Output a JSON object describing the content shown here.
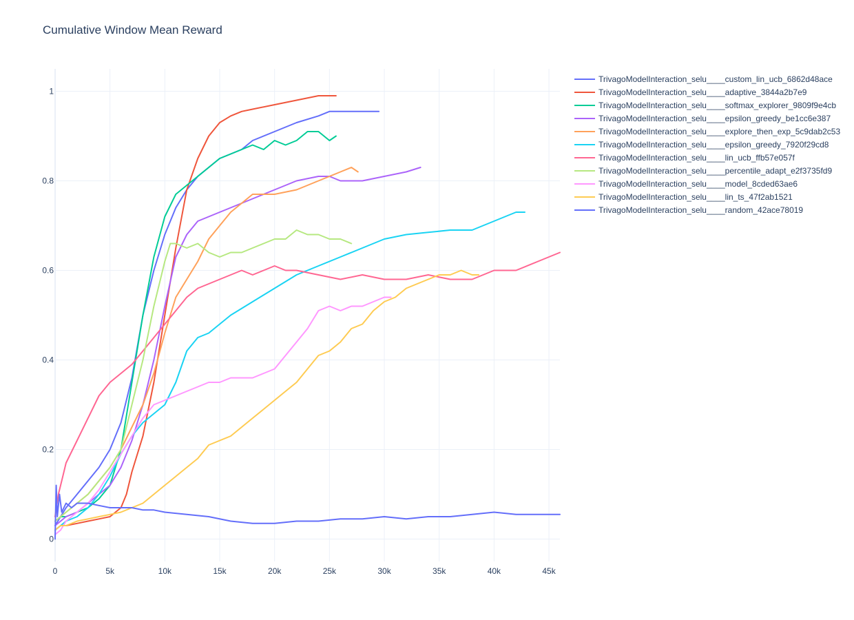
{
  "chart_data": {
    "type": "line",
    "title": "Cumulative Window Mean Reward",
    "xlabel": "",
    "ylabel": "",
    "xlim": [
      0,
      46000
    ],
    "ylim": [
      -0.05,
      1.05
    ],
    "x_ticks": [
      0,
      5000,
      10000,
      15000,
      20000,
      25000,
      30000,
      35000,
      40000,
      45000
    ],
    "x_tick_labels": [
      "0",
      "5k",
      "10k",
      "15k",
      "20k",
      "25k",
      "30k",
      "35k",
      "40k",
      "45k"
    ],
    "y_ticks": [
      0,
      0.2,
      0.4,
      0.6,
      0.8,
      1
    ],
    "y_tick_labels": [
      "0",
      "0.2",
      "0.4",
      "0.6",
      "0.8",
      "1"
    ],
    "grid": true,
    "legend_position": "top-right",
    "series": [
      {
        "name": "TrivagoModelInteraction_selu____custom_lin_ucb_6862d48ace",
        "color": "#636efa",
        "x": [
          0,
          500,
          1000,
          2000,
          3000,
          4000,
          5000,
          6000,
          7000,
          8000,
          9000,
          10000,
          11000,
          12000,
          13000,
          14000,
          15000,
          16000,
          17000,
          18000,
          20000,
          22000,
          24000,
          25000,
          26000,
          28000,
          29500
        ],
        "y": [
          0.03,
          0.05,
          0.07,
          0.1,
          0.13,
          0.16,
          0.2,
          0.26,
          0.36,
          0.5,
          0.6,
          0.68,
          0.74,
          0.78,
          0.81,
          0.83,
          0.85,
          0.86,
          0.87,
          0.89,
          0.91,
          0.93,
          0.945,
          0.955,
          0.955,
          0.955,
          0.955
        ]
      },
      {
        "name": "TrivagoModelInteraction_selu____adaptive_3844a2b7e9",
        "color": "#ef553b",
        "x": [
          0,
          500,
          1000,
          2000,
          3000,
          4000,
          5000,
          6000,
          6500,
          7000,
          7500,
          8000,
          9000,
          10000,
          11000,
          12000,
          13000,
          14000,
          15000,
          16000,
          17000,
          18000,
          20000,
          22000,
          24000,
          25600
        ],
        "y": [
          0.02,
          0.03,
          0.03,
          0.035,
          0.04,
          0.045,
          0.05,
          0.07,
          0.1,
          0.15,
          0.19,
          0.23,
          0.35,
          0.5,
          0.65,
          0.78,
          0.85,
          0.9,
          0.93,
          0.945,
          0.955,
          0.96,
          0.97,
          0.98,
          0.99,
          0.99
        ]
      },
      {
        "name": "TrivagoModelInteraction_selu____softmax_explorer_9809f9e4cb",
        "color": "#00cc96",
        "x": [
          0,
          500,
          1000,
          2000,
          3000,
          4000,
          5000,
          6000,
          7000,
          8000,
          9000,
          10000,
          11000,
          12000,
          13000,
          14000,
          15000,
          16000,
          17000,
          18000,
          19000,
          20000,
          21000,
          22000,
          23000,
          24000,
          25000,
          25600
        ],
        "y": [
          0.04,
          0.05,
          0.05,
          0.06,
          0.07,
          0.09,
          0.12,
          0.2,
          0.35,
          0.5,
          0.63,
          0.72,
          0.77,
          0.79,
          0.81,
          0.83,
          0.85,
          0.86,
          0.87,
          0.88,
          0.87,
          0.89,
          0.88,
          0.89,
          0.91,
          0.91,
          0.89,
          0.9
        ]
      },
      {
        "name": "TrivagoModelInteraction_selu____epsilon_greedy_be1cc6e387",
        "color": "#ab63fa",
        "x": [
          0,
          500,
          1000,
          2000,
          3000,
          4000,
          5000,
          6000,
          7000,
          8000,
          9000,
          10000,
          11000,
          12000,
          13000,
          14000,
          15000,
          16000,
          18000,
          20000,
          22000,
          24000,
          25000,
          26000,
          28000,
          30000,
          32000,
          33300
        ],
        "y": [
          0.03,
          0.04,
          0.05,
          0.06,
          0.08,
          0.1,
          0.12,
          0.16,
          0.22,
          0.3,
          0.4,
          0.52,
          0.63,
          0.68,
          0.71,
          0.72,
          0.73,
          0.74,
          0.76,
          0.78,
          0.8,
          0.81,
          0.81,
          0.8,
          0.8,
          0.81,
          0.82,
          0.83
        ]
      },
      {
        "name": "TrivagoModelInteraction_selu____explore_then_exp_5c9dab2c53",
        "color": "#ffa15a",
        "x": [
          0,
          500,
          1000,
          2000,
          3000,
          4000,
          5000,
          6000,
          7000,
          8000,
          9000,
          10000,
          11000,
          12000,
          13000,
          14000,
          15000,
          16000,
          17000,
          18000,
          20000,
          22000,
          24000,
          25000,
          26000,
          27000,
          27600
        ],
        "y": [
          0.04,
          0.05,
          0.06,
          0.08,
          0.1,
          0.13,
          0.16,
          0.2,
          0.25,
          0.3,
          0.37,
          0.46,
          0.54,
          0.58,
          0.62,
          0.67,
          0.7,
          0.73,
          0.75,
          0.77,
          0.77,
          0.78,
          0.8,
          0.81,
          0.82,
          0.83,
          0.82
        ]
      },
      {
        "name": "TrivagoModelInteraction_selu____epsilon_greedy_7920f29cd8",
        "color": "#19d3f3",
        "x": [
          0,
          500,
          1000,
          2000,
          3000,
          4000,
          5000,
          6000,
          7000,
          8000,
          9000,
          10000,
          11000,
          12000,
          13000,
          14000,
          15000,
          16000,
          18000,
          20000,
          22000,
          24000,
          26000,
          28000,
          30000,
          32000,
          34000,
          36000,
          38000,
          40000,
          41000,
          42000,
          42800
        ],
        "y": [
          0.02,
          0.03,
          0.04,
          0.05,
          0.07,
          0.1,
          0.14,
          0.19,
          0.23,
          0.26,
          0.28,
          0.3,
          0.35,
          0.42,
          0.45,
          0.46,
          0.48,
          0.5,
          0.53,
          0.56,
          0.59,
          0.61,
          0.63,
          0.65,
          0.67,
          0.68,
          0.685,
          0.69,
          0.69,
          0.71,
          0.72,
          0.73,
          0.73
        ]
      },
      {
        "name": "TrivagoModelInteraction_selu____lin_ucb_ffb57e057f",
        "color": "#ff6692",
        "x": [
          0,
          300,
          700,
          1000,
          2000,
          3000,
          4000,
          5000,
          6000,
          7000,
          8000,
          9000,
          10000,
          11000,
          12000,
          13000,
          14000,
          15000,
          16000,
          17000,
          18000,
          19000,
          20000,
          21000,
          22000,
          24000,
          26000,
          28000,
          30000,
          32000,
          34000,
          36000,
          37000,
          38000,
          40000,
          42000,
          44000,
          46000
        ],
        "y": [
          0.05,
          0.1,
          0.14,
          0.17,
          0.22,
          0.27,
          0.32,
          0.35,
          0.37,
          0.39,
          0.42,
          0.45,
          0.48,
          0.51,
          0.54,
          0.56,
          0.57,
          0.58,
          0.59,
          0.6,
          0.59,
          0.6,
          0.61,
          0.6,
          0.6,
          0.59,
          0.58,
          0.59,
          0.58,
          0.58,
          0.59,
          0.58,
          0.58,
          0.58,
          0.6,
          0.6,
          0.62,
          0.64
        ]
      },
      {
        "name": "TrivagoModelInteraction_selu____percentile_adapt_e2f3735fd9",
        "color": "#b6e880",
        "x": [
          0,
          500,
          1000,
          2000,
          3000,
          4000,
          5000,
          6000,
          7000,
          8000,
          9000,
          10000,
          10500,
          11000,
          12000,
          13000,
          14000,
          15000,
          16000,
          17000,
          18000,
          19000,
          20000,
          21000,
          22000,
          23000,
          24000,
          25000,
          26000,
          27000
        ],
        "y": [
          0.04,
          0.05,
          0.06,
          0.08,
          0.1,
          0.13,
          0.16,
          0.2,
          0.3,
          0.4,
          0.52,
          0.62,
          0.66,
          0.66,
          0.65,
          0.66,
          0.64,
          0.63,
          0.64,
          0.64,
          0.65,
          0.66,
          0.67,
          0.67,
          0.69,
          0.68,
          0.68,
          0.67,
          0.67,
          0.66
        ]
      },
      {
        "name": "TrivagoModelInteraction_selu____model_8cded63ae6",
        "color": "#ff97ff",
        "x": [
          0,
          500,
          1000,
          2000,
          3000,
          4000,
          5000,
          6000,
          7000,
          8000,
          9000,
          10000,
          11000,
          12000,
          13000,
          14000,
          15000,
          16000,
          17000,
          18000,
          19000,
          20000,
          21000,
          22000,
          23000,
          24000,
          25000,
          26000,
          27000,
          28000,
          29000,
          30000,
          30600
        ],
        "y": [
          0.01,
          0.02,
          0.04,
          0.06,
          0.08,
          0.11,
          0.15,
          0.19,
          0.23,
          0.27,
          0.3,
          0.31,
          0.32,
          0.33,
          0.34,
          0.35,
          0.35,
          0.36,
          0.36,
          0.36,
          0.37,
          0.38,
          0.41,
          0.44,
          0.47,
          0.51,
          0.52,
          0.51,
          0.52,
          0.52,
          0.53,
          0.54,
          0.54
        ]
      },
      {
        "name": "TrivagoModelInteraction_selu____lin_ts_47f2ab1521",
        "color": "#fecb52",
        "x": [
          0,
          500,
          1000,
          2000,
          3000,
          4000,
          5000,
          6000,
          7000,
          8000,
          9000,
          10000,
          11000,
          12000,
          13000,
          14000,
          15000,
          16000,
          17000,
          18000,
          19000,
          20000,
          21000,
          22000,
          23000,
          24000,
          25000,
          26000,
          27000,
          28000,
          29000,
          30000,
          31000,
          32000,
          33000,
          34000,
          35000,
          36000,
          37000,
          38000,
          38600
        ],
        "y": [
          0.02,
          0.03,
          0.03,
          0.04,
          0.045,
          0.05,
          0.055,
          0.06,
          0.07,
          0.08,
          0.1,
          0.12,
          0.14,
          0.16,
          0.18,
          0.21,
          0.22,
          0.23,
          0.25,
          0.27,
          0.29,
          0.31,
          0.33,
          0.35,
          0.38,
          0.41,
          0.42,
          0.44,
          0.47,
          0.48,
          0.51,
          0.53,
          0.54,
          0.56,
          0.57,
          0.58,
          0.59,
          0.59,
          0.6,
          0.59,
          0.59
        ]
      },
      {
        "name": "TrivagoModelInteraction_selu____random_42ace78019",
        "color": "#636efa",
        "x": [
          0,
          100,
          200,
          400,
          600,
          1000,
          1500,
          2000,
          3000,
          4000,
          5000,
          6000,
          7000,
          8000,
          9000,
          10000,
          12000,
          14000,
          16000,
          18000,
          20000,
          22000,
          24000,
          26000,
          28000,
          30000,
          32000,
          34000,
          36000,
          38000,
          40000,
          42000,
          44000,
          46000
        ],
        "y": [
          0.0,
          0.12,
          0.05,
          0.1,
          0.06,
          0.08,
          0.07,
          0.08,
          0.08,
          0.075,
          0.07,
          0.07,
          0.07,
          0.065,
          0.065,
          0.06,
          0.055,
          0.05,
          0.04,
          0.035,
          0.035,
          0.04,
          0.04,
          0.045,
          0.045,
          0.05,
          0.045,
          0.05,
          0.05,
          0.055,
          0.06,
          0.055,
          0.055,
          0.055
        ]
      }
    ]
  }
}
